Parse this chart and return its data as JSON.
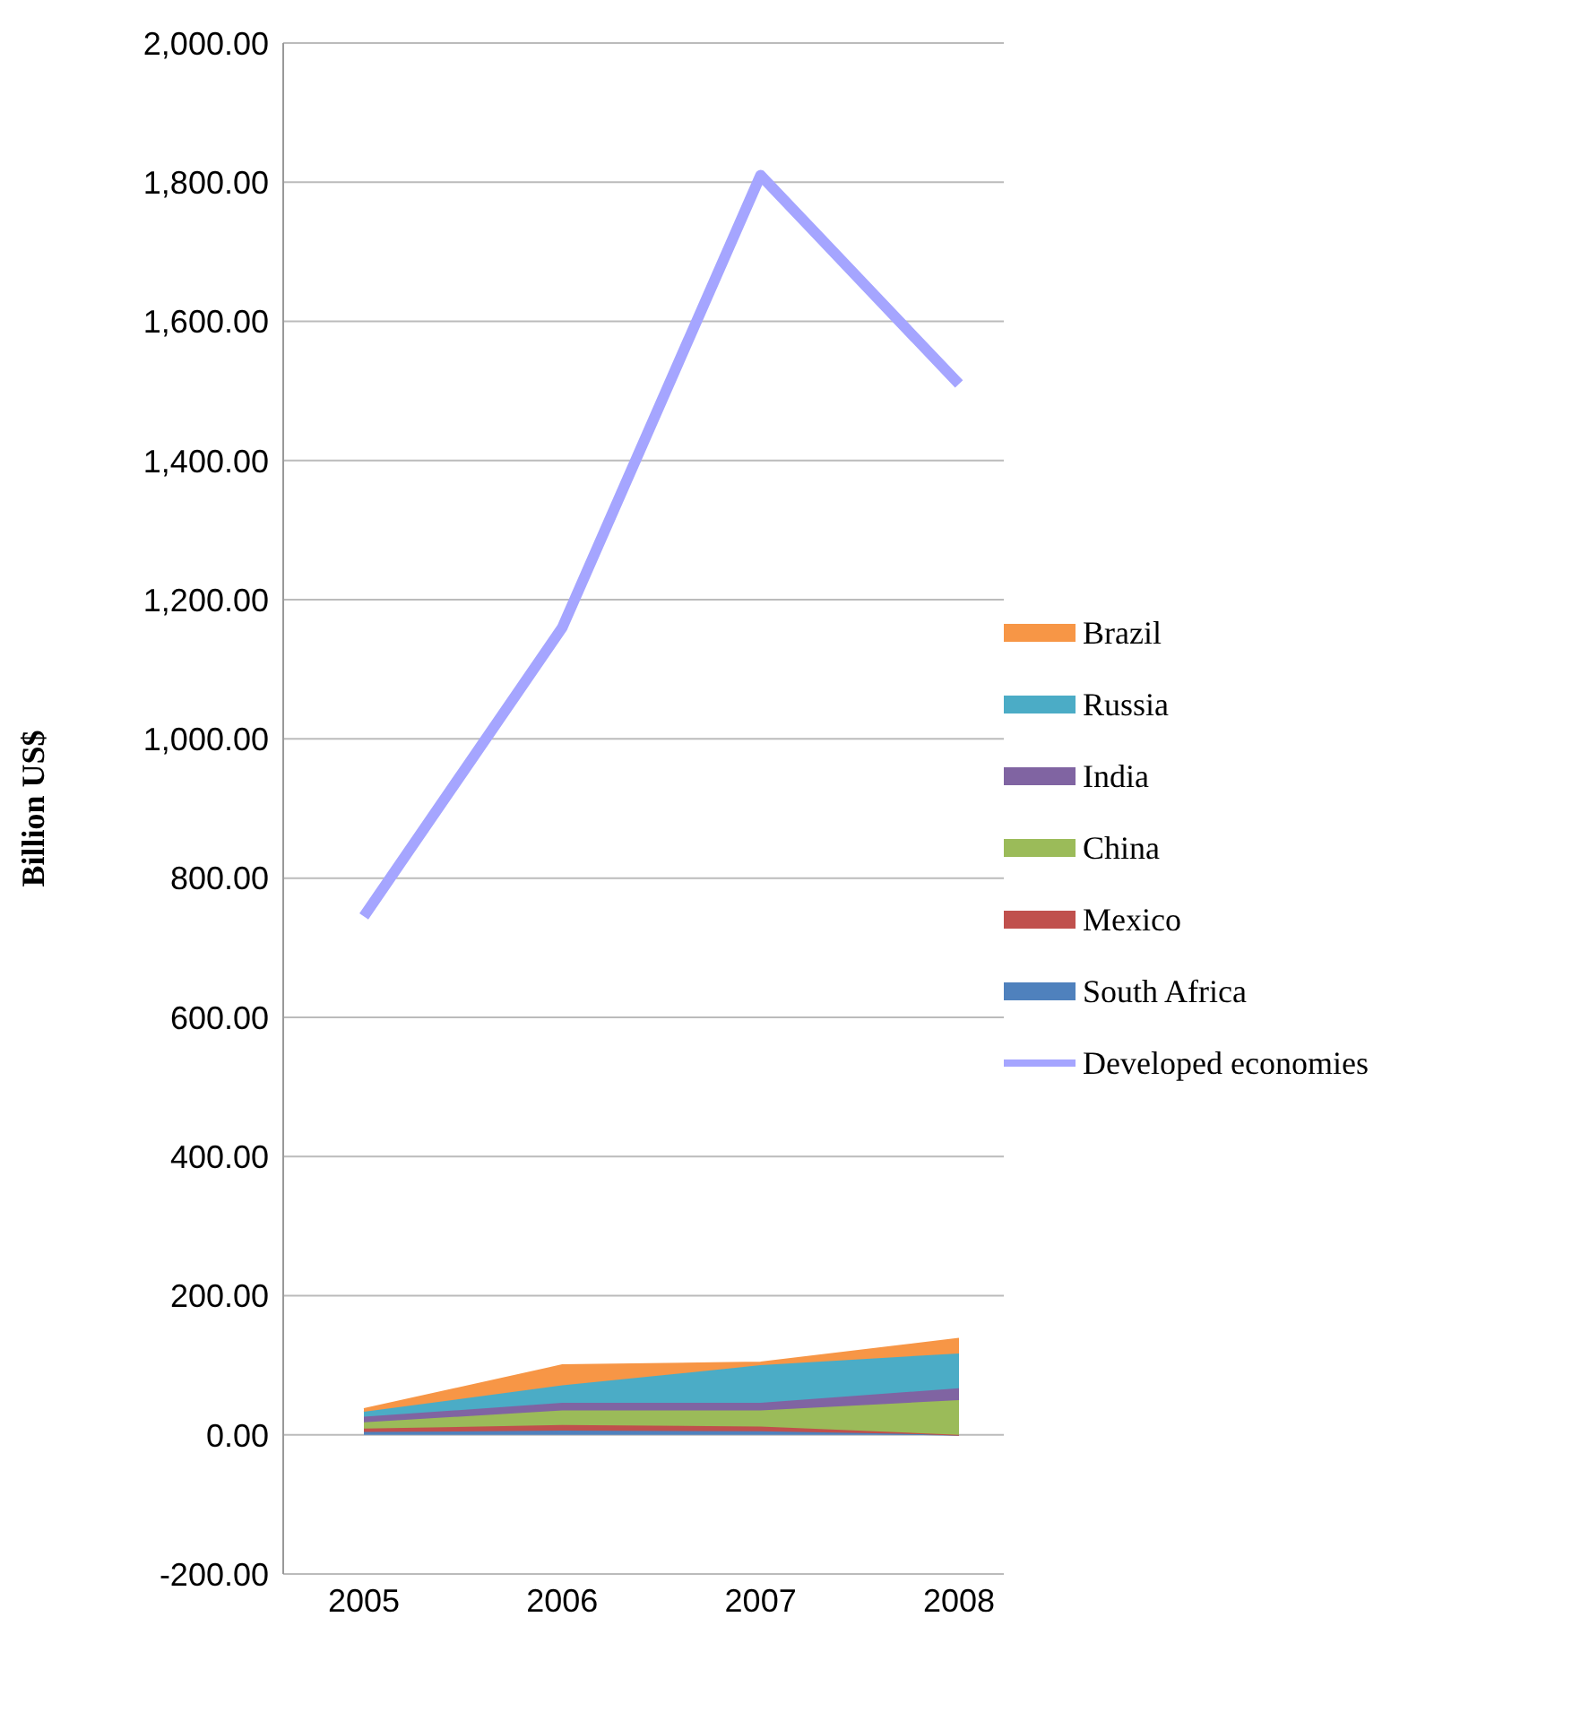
{
  "chart_data": {
    "type": "area",
    "ylabel": "Billion US$",
    "categories": [
      "2005",
      "2006",
      "2007",
      "2008"
    ],
    "stacked": true,
    "series": [
      {
        "name": "South Africa",
        "color": "#4f81bd",
        "values": [
          4,
          6,
          5,
          0
        ]
      },
      {
        "name": "Mexico",
        "color": "#c0504d",
        "values": [
          5,
          8,
          7,
          0
        ]
      },
      {
        "name": "China",
        "color": "#9bbb59",
        "values": [
          9,
          21,
          23,
          50
        ]
      },
      {
        "name": "India",
        "color": "#8064a2",
        "values": [
          8,
          11,
          11,
          17
        ]
      },
      {
        "name": "Russia",
        "color": "#4bacc6",
        "values": [
          7,
          25,
          54,
          50
        ]
      },
      {
        "name": "Brazil",
        "color": "#f79646",
        "values": [
          4,
          29,
          4,
          21
        ]
      },
      {
        "name": "Developed economies",
        "type": "line",
        "color": "#a5a5ff",
        "values": [
          745,
          1160,
          1810,
          1510
        ]
      }
    ],
    "ylim": [
      -200,
      2000
    ],
    "yticks": [
      {
        "value": -200,
        "label": "-200.00"
      },
      {
        "value": 0,
        "label": "0.00"
      },
      {
        "value": 200,
        "label": "200.00"
      },
      {
        "value": 400,
        "label": "400.00"
      },
      {
        "value": 600,
        "label": "600.00"
      },
      {
        "value": 800,
        "label": "800.00"
      },
      {
        "value": 1000,
        "label": "1,000.00"
      },
      {
        "value": 1200,
        "label": "1,200.00"
      },
      {
        "value": 1400,
        "label": "1,400.00"
      },
      {
        "value": 1600,
        "label": "1,600.00"
      },
      {
        "value": 1800,
        "label": "1,800.00"
      },
      {
        "value": 2000,
        "label": "2,000.00"
      }
    ],
    "grid": "y",
    "legend": "right",
    "marker": "none"
  }
}
